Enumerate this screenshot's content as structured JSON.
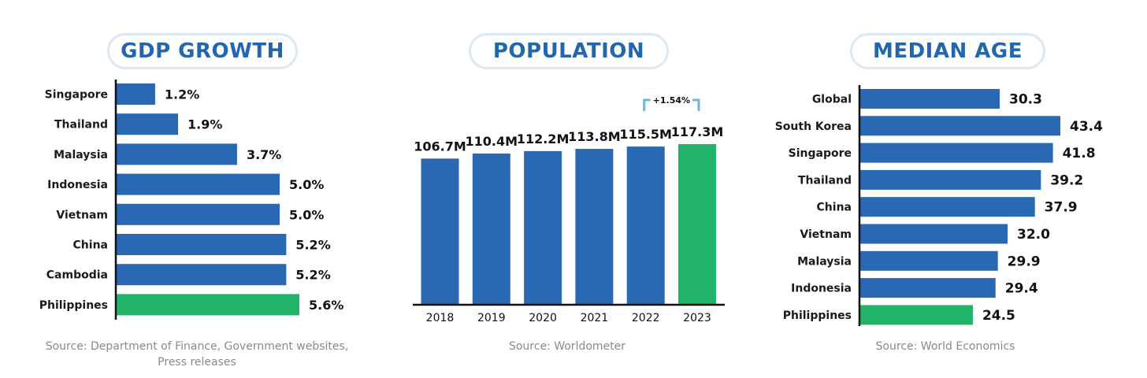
{
  "colors": {
    "bar": "#2a68b3",
    "highlight": "#21b36a",
    "title": "#2166ae",
    "pill_border": "#dde8f1",
    "source": "#8a8a8a",
    "bracket": "#6fb6d8"
  },
  "chart_data": [
    {
      "type": "bar",
      "orientation": "horizontal",
      "title": "GDP GROWTH",
      "categories": [
        "Singapore",
        "Thailand",
        "Malaysia",
        "Indonesia",
        "Vietnam",
        "China",
        "Cambodia",
        "Philippines"
      ],
      "values": [
        1.2,
        1.9,
        3.7,
        5.0,
        5.0,
        5.2,
        5.2,
        5.6
      ],
      "value_labels": [
        "1.2%",
        "1.9%",
        "3.7%",
        "5.0%",
        "5.0%",
        "5.2%",
        "5.2%",
        "5.6%"
      ],
      "highlight": "Philippines",
      "xlim": [
        0,
        5.6
      ],
      "grid": false,
      "source": "Source: Department of Finance, Government websites,\nPress releases"
    },
    {
      "type": "bar",
      "orientation": "vertical",
      "title": "POPULATION",
      "categories": [
        "2018",
        "2019",
        "2020",
        "2021",
        "2022",
        "2023"
      ],
      "values": [
        106.7,
        110.4,
        112.2,
        113.8,
        115.5,
        117.3
      ],
      "value_labels": [
        "106.7M",
        "110.4M",
        "112.2M",
        "113.8M",
        "115.5M",
        "117.3M"
      ],
      "highlight": "2023",
      "annotation": "+1.54%",
      "ylim": [
        0,
        117.3
      ],
      "grid": false,
      "source": "Source: Worldometer"
    },
    {
      "type": "bar",
      "orientation": "horizontal",
      "title": "MEDIAN AGE",
      "categories": [
        "Global",
        "South Korea",
        "Singapore",
        "Thailand",
        "China",
        "Vietnam",
        "Malaysia",
        "Indonesia",
        "Philippines"
      ],
      "values": [
        30.3,
        43.4,
        41.8,
        39.2,
        37.9,
        32.0,
        29.9,
        29.4,
        24.5
      ],
      "value_labels": [
        "30.3",
        "43.4",
        "41.8",
        "39.2",
        "37.9",
        "32.0",
        "29.9",
        "29.4",
        "24.5"
      ],
      "highlight": "Philippines",
      "xlim": [
        0,
        43.4
      ],
      "grid": false,
      "source": "Source: World Economics"
    }
  ]
}
